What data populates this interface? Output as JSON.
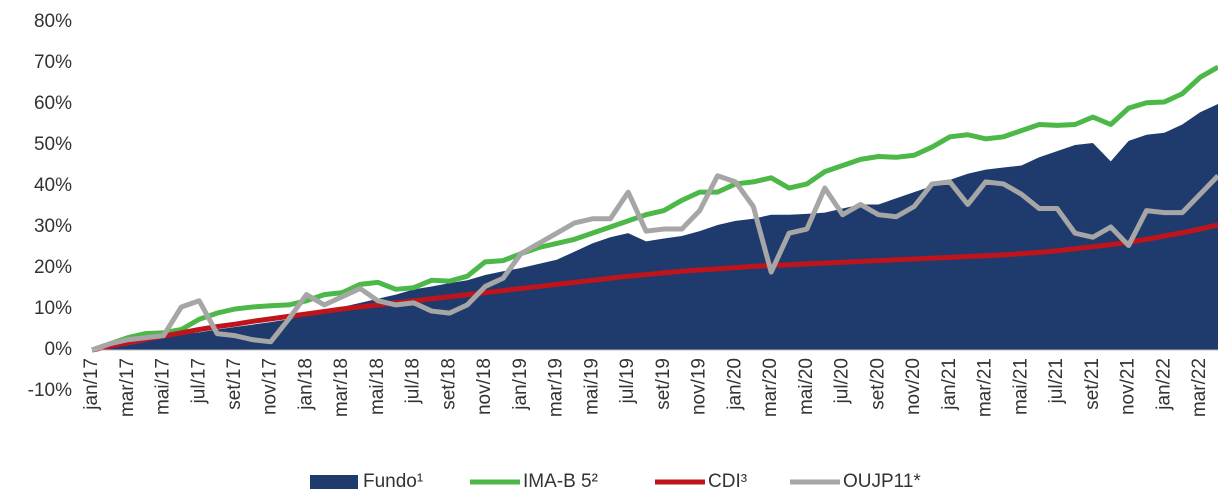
{
  "chart_data": {
    "type": "line",
    "categories": [
      "jan/17",
      null,
      "mar/17",
      null,
      "mai/17",
      null,
      "jul/17",
      null,
      "set/17",
      null,
      "nov/17",
      null,
      "jan/18",
      null,
      "mar/18",
      null,
      "mai/18",
      null,
      "jul/18",
      null,
      "set/18",
      null,
      "nov/18",
      null,
      "jan/19",
      null,
      "mar/19",
      null,
      "mai/19",
      null,
      "jul/19",
      null,
      "set/19",
      null,
      "nov/19",
      null,
      "jan/20",
      null,
      "mar/20",
      null,
      "mai/20",
      null,
      "jul/20",
      null,
      "set/20",
      null,
      "nov/20",
      null,
      "jan/21",
      null,
      "mar/21",
      null,
      "mai/21",
      null,
      "jul/21",
      null,
      "set/21",
      null,
      "nov/21",
      null,
      "jan/22",
      null,
      "mar/22",
      null
    ],
    "series": [
      {
        "name": "Fundo¹",
        "color": "#1f3b6e",
        "style": "area",
        "values": [
          0,
          0.5,
          1.2,
          2,
          3,
          3.8,
          4.3,
          5,
          5.6,
          6.2,
          6.8,
          7.5,
          8.5,
          9.5,
          10.5,
          11.5,
          12.5,
          13.5,
          14.8,
          15.5,
          16.3,
          17,
          18.3,
          19.2,
          20,
          21,
          22,
          24,
          26,
          27.5,
          28.5,
          26.5,
          27.2,
          27.8,
          29,
          30.5,
          31.5,
          32,
          33,
          33,
          33.2,
          33.5,
          34.5,
          35.5,
          35.5,
          37,
          38.5,
          40,
          41.5,
          43,
          44,
          44.5,
          45,
          47,
          48.5,
          50,
          50.5,
          46,
          51,
          52.5,
          53,
          55,
          58,
          60
        ]
      },
      {
        "name": "IMA-B 5²",
        "color": "#4cb848",
        "style": "line",
        "values": [
          0,
          1.5,
          3,
          4,
          4.2,
          5,
          7.5,
          9,
          10,
          10.5,
          10.8,
          11,
          12,
          13.5,
          14,
          16,
          16.5,
          14.8,
          15.2,
          17,
          16.8,
          18,
          21.5,
          21.8,
          23.5,
          25,
          26,
          27,
          28.5,
          30,
          31.5,
          33,
          34,
          36.5,
          38.5,
          38.5,
          40.5,
          41,
          42,
          39.5,
          40.5,
          43.5,
          45,
          46.5,
          47.2,
          47,
          47.5,
          49.5,
          52,
          52.5,
          51.5,
          52,
          53.5,
          55,
          54.8,
          55,
          56.8,
          55,
          59,
          60.3,
          60.5,
          62.5,
          66.5,
          69
        ]
      },
      {
        "name": "CDI³",
        "color": "#c0141c",
        "style": "line",
        "values": [
          0,
          0.9,
          1.8,
          2.6,
          3.4,
          4.2,
          5,
          5.7,
          6.3,
          7,
          7.6,
          8.2,
          8.8,
          9.4,
          10,
          10.5,
          11,
          11.5,
          12,
          12.5,
          13,
          13.5,
          14,
          14.5,
          15,
          15.5,
          16,
          16.5,
          17,
          17.5,
          18,
          18.4,
          18.8,
          19.2,
          19.5,
          19.8,
          20.1,
          20.4,
          20.6,
          20.8,
          21,
          21.2,
          21.4,
          21.6,
          21.8,
          22,
          22.2,
          22.4,
          22.6,
          22.8,
          23,
          23.2,
          23.5,
          23.8,
          24.2,
          24.7,
          25.2,
          25.7,
          26.3,
          27,
          27.8,
          28.6,
          29.5,
          30.5
        ]
      },
      {
        "name": "OUJP11*",
        "color": "#a6a6a6",
        "style": "line",
        "values": [
          0,
          1.5,
          2.5,
          3,
          3.5,
          10.5,
          12,
          4,
          3.5,
          2.5,
          2,
          7.5,
          13.5,
          11,
          13,
          15,
          12,
          11,
          11.5,
          9.5,
          9,
          11,
          15.5,
          17.5,
          23.5,
          26,
          28.5,
          31,
          32,
          32,
          38.5,
          29,
          29.5,
          29.5,
          34,
          42.5,
          41,
          35,
          19,
          28.5,
          29.5,
          39.5,
          33,
          35.5,
          33,
          32.5,
          35,
          40.5,
          41,
          35.5,
          41,
          40.5,
          38,
          34.5,
          34.5,
          28.5,
          27.5,
          30,
          25.5,
          34,
          33.5,
          33.5,
          38,
          42.5
        ]
      }
    ],
    "ylim": [
      -10,
      80
    ],
    "yticks": [
      {
        "value": -10,
        "label": "-10%"
      },
      {
        "value": 0,
        "label": "0%"
      },
      {
        "value": 10,
        "label": "10%"
      },
      {
        "value": 20,
        "label": "20%"
      },
      {
        "value": 30,
        "label": "30%"
      },
      {
        "value": 40,
        "label": "40%"
      },
      {
        "value": 50,
        "label": "50%"
      },
      {
        "value": 60,
        "label": "60%"
      },
      {
        "value": 70,
        "label": "70%"
      },
      {
        "value": 80,
        "label": "80%"
      }
    ],
    "grid": false,
    "legend": "bottom"
  }
}
